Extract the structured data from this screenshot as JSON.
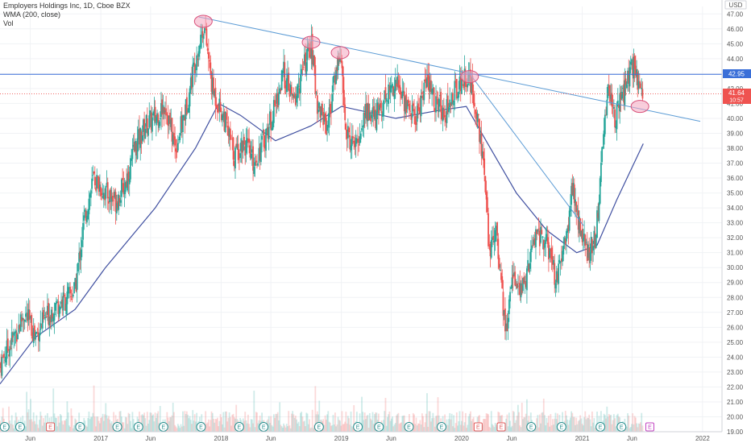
{
  "legend": {
    "title": "Employers Holdings Inc, 1D, Cboe BZX",
    "indicator": "WMA (200, close)",
    "volume": "Vol"
  },
  "currency": "USD",
  "price_labels": {
    "last_price": "42.95",
    "current_price": "41.64",
    "countdown": "10:57"
  },
  "colors": {
    "up": "#26a69a",
    "down": "#ef5350",
    "wma": "#3f4fa0",
    "trendline": "#5b9bd5",
    "horizontal": "#3a6fd8",
    "highlight_fill": "#f4a6c0",
    "highlight_stroke": "#d8507a",
    "last_price_bg": "#3a6fd8",
    "current_price_bg": "#ef5350",
    "event_e": "#2a8f8f",
    "event_d": "#e05a5a",
    "event_future": "#c040c0"
  },
  "chart_data": {
    "type": "candlestick",
    "x_start": "2016-03-01",
    "x_end": "2022-03-01",
    "ylim": [
      19.0,
      47.5
    ],
    "y_ticks": [
      19.0,
      20.0,
      21.0,
      22.0,
      23.0,
      24.0,
      25.0,
      26.0,
      27.0,
      28.0,
      29.0,
      30.0,
      31.0,
      32.0,
      33.0,
      34.0,
      35.0,
      36.0,
      37.0,
      38.0,
      39.0,
      40.0,
      41.0,
      42.0,
      43.0,
      44.0,
      45.0,
      46.0,
      47.0
    ],
    "x_ticks": [
      {
        "label": "Jun",
        "date": "2016-06-01"
      },
      {
        "label": "2017",
        "date": "2017-01-01"
      },
      {
        "label": "Jun",
        "date": "2017-06-01"
      },
      {
        "label": "2018",
        "date": "2018-01-01"
      },
      {
        "label": "Jun",
        "date": "2018-06-01"
      },
      {
        "label": "2019",
        "date": "2019-01-01"
      },
      {
        "label": "Jun",
        "date": "2019-06-01"
      },
      {
        "label": "2020",
        "date": "2020-01-01"
      },
      {
        "label": "Jun",
        "date": "2020-06-01"
      },
      {
        "label": "2021",
        "date": "2021-01-01"
      },
      {
        "label": "Jun",
        "date": "2021-06-01"
      },
      {
        "label": "2022",
        "date": "2022-01-01"
      }
    ],
    "price_path": [
      {
        "date": "2016-03-01",
        "price": 23.5
      },
      {
        "date": "2016-04-15",
        "price": 25.5
      },
      {
        "date": "2016-05-15",
        "price": 27.0
      },
      {
        "date": "2016-06-15",
        "price": 25.5
      },
      {
        "date": "2016-07-15",
        "price": 26.5
      },
      {
        "date": "2016-08-15",
        "price": 27.5
      },
      {
        "date": "2016-09-15",
        "price": 27.8
      },
      {
        "date": "2016-10-15",
        "price": 28.5
      },
      {
        "date": "2016-11-10",
        "price": 33.0
      },
      {
        "date": "2016-12-10",
        "price": 36.0
      },
      {
        "date": "2017-01-15",
        "price": 35.0
      },
      {
        "date": "2017-02-15",
        "price": 34.5
      },
      {
        "date": "2017-03-15",
        "price": 35.5
      },
      {
        "date": "2017-04-15",
        "price": 38.0
      },
      {
        "date": "2017-05-15",
        "price": 39.5
      },
      {
        "date": "2017-06-15",
        "price": 40.0
      },
      {
        "date": "2017-07-15",
        "price": 41.0
      },
      {
        "date": "2017-08-15",
        "price": 38.0
      },
      {
        "date": "2017-09-15",
        "price": 40.5
      },
      {
        "date": "2017-10-15",
        "price": 44.0
      },
      {
        "date": "2017-11-10",
        "price": 46.3
      },
      {
        "date": "2017-12-05",
        "price": 42.0
      },
      {
        "date": "2018-01-10",
        "price": 40.0
      },
      {
        "date": "2018-02-10",
        "price": 37.5
      },
      {
        "date": "2018-03-10",
        "price": 38.5
      },
      {
        "date": "2018-04-10",
        "price": 37.0
      },
      {
        "date": "2018-05-10",
        "price": 38.5
      },
      {
        "date": "2018-06-10",
        "price": 40.5
      },
      {
        "date": "2018-07-10",
        "price": 43.0
      },
      {
        "date": "2018-08-10",
        "price": 41.0
      },
      {
        "date": "2018-09-10",
        "price": 43.5
      },
      {
        "date": "2018-10-01",
        "price": 45.0
      },
      {
        "date": "2018-10-20",
        "price": 41.0
      },
      {
        "date": "2018-11-20",
        "price": 39.5
      },
      {
        "date": "2018-12-10",
        "price": 42.5
      },
      {
        "date": "2018-12-28",
        "price": 44.5
      },
      {
        "date": "2019-01-15",
        "price": 39.0
      },
      {
        "date": "2019-02-15",
        "price": 38.0
      },
      {
        "date": "2019-03-15",
        "price": 40.5
      },
      {
        "date": "2019-04-15",
        "price": 40.0
      },
      {
        "date": "2019-05-15",
        "price": 41.5
      },
      {
        "date": "2019-06-15",
        "price": 42.5
      },
      {
        "date": "2019-07-15",
        "price": 41.0
      },
      {
        "date": "2019-08-15",
        "price": 40.0
      },
      {
        "date": "2019-09-15",
        "price": 42.5
      },
      {
        "date": "2019-10-15",
        "price": 41.0
      },
      {
        "date": "2019-11-15",
        "price": 40.5
      },
      {
        "date": "2019-12-15",
        "price": 42.0
      },
      {
        "date": "2020-01-20",
        "price": 43.0
      },
      {
        "date": "2020-02-20",
        "price": 40.0
      },
      {
        "date": "2020-03-10",
        "price": 36.0
      },
      {
        "date": "2020-03-25",
        "price": 31.0
      },
      {
        "date": "2020-04-15",
        "price": 33.0
      },
      {
        "date": "2020-05-01",
        "price": 28.5
      },
      {
        "date": "2020-05-15",
        "price": 25.5
      },
      {
        "date": "2020-06-05",
        "price": 30.0
      },
      {
        "date": "2020-06-25",
        "price": 28.0
      },
      {
        "date": "2020-07-15",
        "price": 29.5
      },
      {
        "date": "2020-08-15",
        "price": 32.5
      },
      {
        "date": "2020-09-15",
        "price": 31.5
      },
      {
        "date": "2020-10-15",
        "price": 29.0
      },
      {
        "date": "2020-11-15",
        "price": 32.0
      },
      {
        "date": "2020-12-01",
        "price": 35.5
      },
      {
        "date": "2020-12-20",
        "price": 33.0
      },
      {
        "date": "2021-01-15",
        "price": 31.0
      },
      {
        "date": "2021-02-10",
        "price": 32.0
      },
      {
        "date": "2021-03-01",
        "price": 37.0
      },
      {
        "date": "2021-03-20",
        "price": 42.5
      },
      {
        "date": "2021-04-10",
        "price": 40.0
      },
      {
        "date": "2021-05-01",
        "price": 41.5
      },
      {
        "date": "2021-05-20",
        "price": 42.5
      },
      {
        "date": "2021-06-05",
        "price": 43.5
      },
      {
        "date": "2021-06-20",
        "price": 42.5
      },
      {
        "date": "2021-07-05",
        "price": 41.6
      }
    ],
    "wma_path": [
      {
        "date": "2016-03-01",
        "price": 22.2
      },
      {
        "date": "2016-06-15",
        "price": 25.3
      },
      {
        "date": "2016-10-15",
        "price": 27.2
      },
      {
        "date": "2017-01-15",
        "price": 30.0
      },
      {
        "date": "2017-06-15",
        "price": 34.0
      },
      {
        "date": "2017-10-15",
        "price": 38.0
      },
      {
        "date": "2017-12-25",
        "price": 41.0
      },
      {
        "date": "2018-03-01",
        "price": 40.2
      },
      {
        "date": "2018-06-15",
        "price": 38.5
      },
      {
        "date": "2018-10-01",
        "price": 39.5
      },
      {
        "date": "2019-01-01",
        "price": 40.8
      },
      {
        "date": "2019-06-15",
        "price": 40.0
      },
      {
        "date": "2019-10-15",
        "price": 40.5
      },
      {
        "date": "2020-01-15",
        "price": 40.8
      },
      {
        "date": "2020-03-15",
        "price": 38.5
      },
      {
        "date": "2020-06-15",
        "price": 35.0
      },
      {
        "date": "2020-09-15",
        "price": 32.5
      },
      {
        "date": "2020-12-15",
        "price": 31.0
      },
      {
        "date": "2021-02-15",
        "price": 31.5
      },
      {
        "date": "2021-04-15",
        "price": 34.5
      },
      {
        "date": "2021-07-05",
        "price": 38.3
      }
    ],
    "lines": [
      {
        "kind": "trendline",
        "from": {
          "date": "2017-10-25",
          "price": 46.8
        },
        "to": {
          "date": "2021-12-25",
          "price": 39.8
        }
      },
      {
        "kind": "trendline",
        "from": {
          "date": "2020-01-25",
          "price": 43.0
        },
        "to": {
          "date": "2021-01-05",
          "price": 32.8
        }
      },
      {
        "kind": "horizontal",
        "price": 42.95
      }
    ],
    "highlights": [
      {
        "date": "2017-11-08",
        "price": 46.5
      },
      {
        "date": "2018-10-01",
        "price": 45.1
      },
      {
        "date": "2018-12-28",
        "price": 44.4
      },
      {
        "date": "2020-01-25",
        "price": 42.8
      },
      {
        "date": "2021-06-25",
        "price": 40.8
      }
    ],
    "events": [
      {
        "label": "E",
        "type": "earnings",
        "date": "2016-03-15"
      },
      {
        "label": "E",
        "type": "earnings",
        "date": "2016-05-01"
      },
      {
        "label": "E",
        "type": "dividend",
        "date": "2016-08-01"
      },
      {
        "label": "E",
        "type": "earnings",
        "date": "2016-10-30"
      },
      {
        "label": "E",
        "type": "earnings",
        "date": "2017-02-20"
      },
      {
        "label": "E",
        "type": "earnings",
        "date": "2017-04-25"
      },
      {
        "label": "E",
        "type": "earnings",
        "date": "2017-07-10"
      },
      {
        "label": "E",
        "type": "earnings",
        "date": "2017-11-01"
      },
      {
        "label": "E",
        "type": "earnings",
        "date": "2018-02-25"
      },
      {
        "label": "E",
        "type": "earnings",
        "date": "2018-05-10"
      },
      {
        "label": "E",
        "type": "earnings",
        "date": "2018-10-25"
      },
      {
        "label": "E",
        "type": "earnings",
        "date": "2019-02-20"
      },
      {
        "label": "E",
        "type": "earnings",
        "date": "2019-04-25"
      },
      {
        "label": "E",
        "type": "earnings",
        "date": "2019-07-25"
      },
      {
        "label": "E",
        "type": "earnings",
        "date": "2019-11-01"
      },
      {
        "label": "E",
        "type": "dividend",
        "date": "2020-02-20"
      },
      {
        "label": "E",
        "type": "dividend",
        "date": "2020-04-30"
      },
      {
        "label": "E",
        "type": "earnings",
        "date": "2020-07-30"
      },
      {
        "label": "E",
        "type": "earnings",
        "date": "2020-10-30"
      },
      {
        "label": "E",
        "type": "earnings",
        "date": "2021-02-25"
      },
      {
        "label": "E",
        "type": "earnings",
        "date": "2021-04-30"
      },
      {
        "label": "E",
        "type": "future",
        "date": "2021-07-25"
      }
    ]
  }
}
